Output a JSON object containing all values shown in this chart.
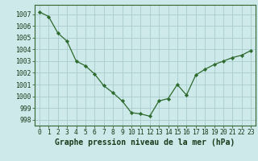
{
  "x": [
    0,
    1,
    2,
    3,
    4,
    5,
    6,
    7,
    8,
    9,
    10,
    11,
    12,
    13,
    14,
    15,
    16,
    17,
    18,
    19,
    20,
    21,
    22,
    23
  ],
  "y": [
    1007.2,
    1006.8,
    1005.4,
    1004.7,
    1003.0,
    1002.6,
    1001.9,
    1000.9,
    1000.3,
    999.6,
    998.6,
    998.5,
    998.3,
    999.6,
    999.8,
    1001.0,
    1000.1,
    1001.8,
    1002.3,
    1002.7,
    1003.0,
    1003.3,
    1003.5,
    1003.9
  ],
  "line_color": "#2d6a2d",
  "marker": "D",
  "marker_size": 2.2,
  "bg_color": "#cde9e9",
  "plot_bg_color": "#cde9e9",
  "grid_color": "#aacccc",
  "title": "Graphe pression niveau de la mer (hPa)",
  "ylim": [
    997.5,
    1007.8
  ],
  "yticks": [
    998,
    999,
    1000,
    1001,
    1002,
    1003,
    1004,
    1005,
    1006,
    1007
  ],
  "xlim": [
    -0.5,
    23.5
  ],
  "xticks": [
    0,
    1,
    2,
    3,
    4,
    5,
    6,
    7,
    8,
    9,
    10,
    11,
    12,
    13,
    14,
    15,
    16,
    17,
    18,
    19,
    20,
    21,
    22,
    23
  ],
  "xtick_labels": [
    "0",
    "1",
    "2",
    "3",
    "4",
    "5",
    "6",
    "7",
    "8",
    "9",
    "10",
    "11",
    "12",
    "13",
    "14",
    "15",
    "16",
    "17",
    "18",
    "19",
    "20",
    "21",
    "22",
    "23"
  ],
  "title_fontsize": 7.0,
  "tick_fontsize": 5.8,
  "text_color": "#1a3a1a",
  "axis_color": "#336633",
  "spine_color": "#336633"
}
